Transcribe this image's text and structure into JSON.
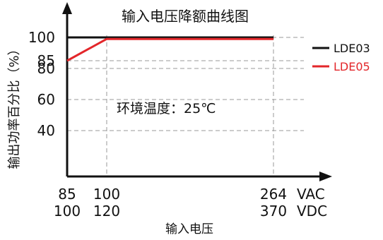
{
  "chart_data": {
    "type": "line",
    "title": "输入电压降额曲线图",
    "ylabel": "输出功率百分比（%）",
    "xlabel": "输入电压",
    "annotation": "环境温度：25℃",
    "ylim": [
      0,
      105
    ],
    "xlim": [
      85,
      280
    ],
    "y_ticks": [
      40,
      60,
      80,
      85,
      100
    ],
    "y_tick_labels": [
      "40",
      "60",
      "80",
      "85",
      "100"
    ],
    "x_ticks": [
      85,
      100,
      264
    ],
    "x_tick_labels_vac": [
      "85",
      "100",
      "264"
    ],
    "x_tick_labels_vdc": [
      "100",
      "120",
      "370"
    ],
    "x_units": [
      "VAC",
      "VDC"
    ],
    "grid": true,
    "grid_style": "dashed",
    "legend_position": "right",
    "series": [
      {
        "name": "LDE03",
        "color": "#111111",
        "x": [
          85,
          264
        ],
        "y": [
          100,
          100
        ]
      },
      {
        "name": "LDE05",
        "color": "#e3262a",
        "x": [
          85,
          100,
          264
        ],
        "y": [
          85,
          99,
          99
        ]
      }
    ]
  }
}
